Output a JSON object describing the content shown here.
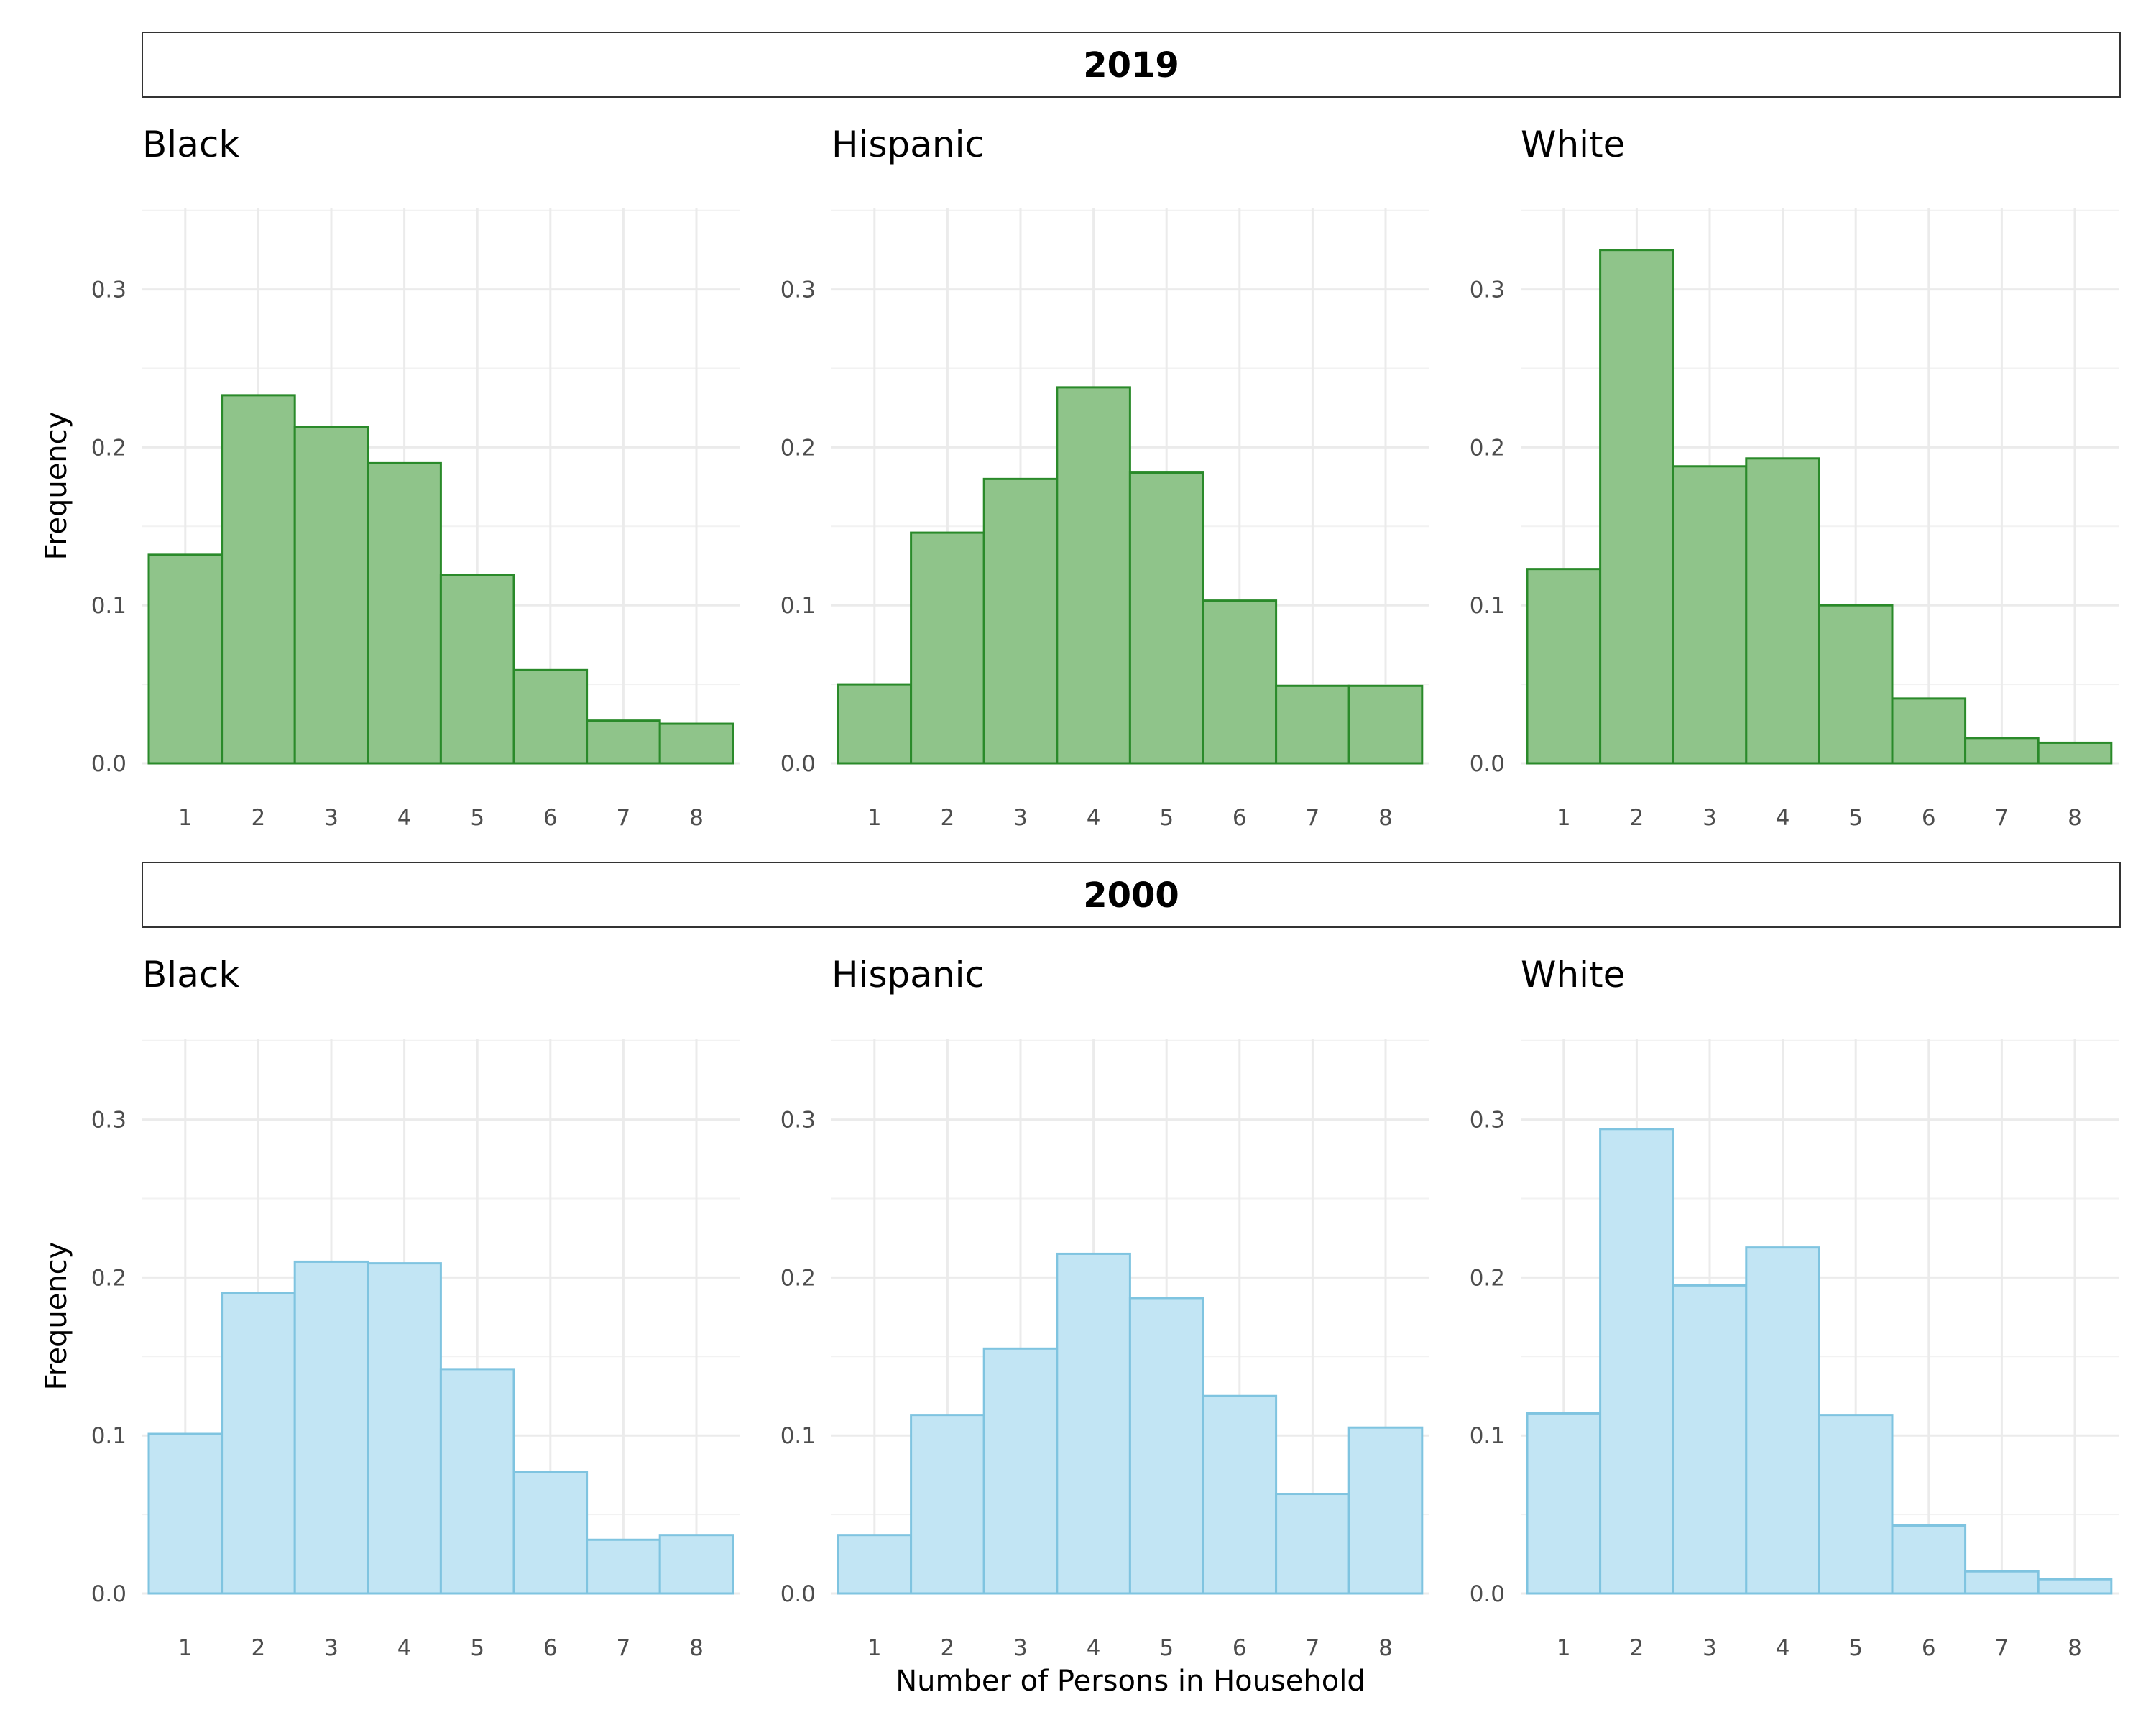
{
  "chart_data": {
    "type": "bar",
    "xlabel": "Number of Persons in Household",
    "ylabel": "Frequency",
    "categories": [
      "1",
      "2",
      "3",
      "4",
      "5",
      "6",
      "7",
      "8"
    ],
    "y_ticks": [
      "0.0",
      "0.1",
      "0.2",
      "0.3"
    ],
    "ylim": [
      0,
      0.35
    ],
    "grid": true,
    "colors": {
      "2019_fill": "#8fc48a",
      "2019_stroke": "#2a8a2a",
      "2000_fill": "#c2e5f4",
      "2000_stroke": "#7fc4e0"
    },
    "facets": [
      {
        "year": "2019",
        "panels": [
          {
            "group": "Black",
            "values": [
              0.132,
              0.233,
              0.213,
              0.19,
              0.119,
              0.059,
              0.027,
              0.025
            ]
          },
          {
            "group": "Hispanic",
            "values": [
              0.05,
              0.146,
              0.18,
              0.238,
              0.184,
              0.103,
              0.049,
              0.049
            ]
          },
          {
            "group": "White",
            "values": [
              0.123,
              0.325,
              0.188,
              0.193,
              0.1,
              0.041,
              0.016,
              0.013
            ]
          }
        ]
      },
      {
        "year": "2000",
        "panels": [
          {
            "group": "Black",
            "values": [
              0.101,
              0.19,
              0.21,
              0.209,
              0.142,
              0.077,
              0.034,
              0.037
            ]
          },
          {
            "group": "Hispanic",
            "values": [
              0.037,
              0.113,
              0.155,
              0.215,
              0.187,
              0.125,
              0.063,
              0.105
            ]
          },
          {
            "group": "White",
            "values": [
              0.114,
              0.294,
              0.195,
              0.219,
              0.113,
              0.043,
              0.014,
              0.009
            ]
          }
        ]
      }
    ]
  }
}
